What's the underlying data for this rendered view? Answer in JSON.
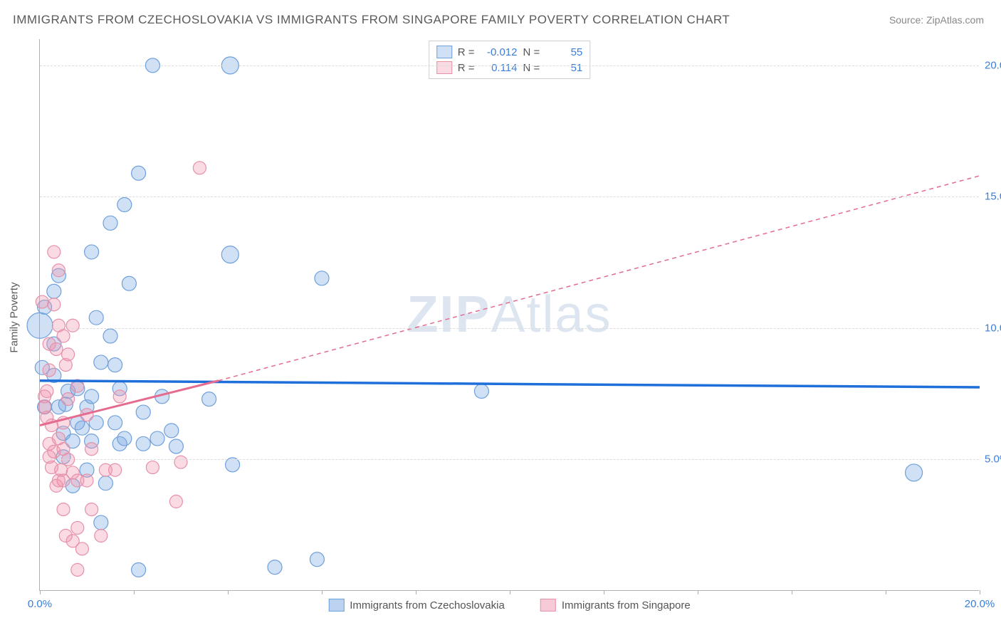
{
  "title": "IMMIGRANTS FROM CZECHOSLOVAKIA VS IMMIGRANTS FROM SINGAPORE FAMILY POVERTY CORRELATION CHART",
  "source": "Source: ZipAtlas.com",
  "watermark_strong": "ZIP",
  "watermark_light": "Atlas",
  "yaxis_title": "Family Poverty",
  "chart": {
    "type": "scatter",
    "xlim": [
      0,
      20
    ],
    "ylim": [
      0,
      21
    ],
    "x_ticks": [
      0,
      2,
      4,
      6,
      8,
      10,
      12,
      14,
      16,
      18,
      20
    ],
    "x_tick_labels": {
      "0": "0.0%",
      "20": "20.0%"
    },
    "y_gridlines": [
      5,
      10,
      15,
      20
    ],
    "y_tick_labels": {
      "5": "5.0%",
      "10": "10.0%",
      "15": "15.0%",
      "20": "20.0%"
    },
    "grid_color": "#dcdcdc",
    "axis_color": "#b0b0b0",
    "label_color": "#3b7dd8",
    "label_fontsize": 15,
    "series": [
      {
        "name": "Immigrants from Czechoslovakia",
        "key": "czech",
        "fill": "rgba(120,165,225,0.35)",
        "stroke": "#6fa0db",
        "trend_color": "#1e6fd9",
        "trend_width": 3.5,
        "trend_dash": "none",
        "trend_from": [
          0,
          8.0
        ],
        "trend_to": [
          20,
          7.75
        ],
        "trend_extrapolate_dash": "none",
        "r_value": "-0.012",
        "n_value": "55",
        "marker_radius": 10,
        "points": [
          [
            0.0,
            10.1,
            18
          ],
          [
            0.05,
            8.5,
            10
          ],
          [
            0.1,
            7.0,
            10
          ],
          [
            0.1,
            10.8,
            10
          ],
          [
            0.3,
            8.2,
            10
          ],
          [
            0.3,
            9.4,
            10
          ],
          [
            0.3,
            11.4,
            10
          ],
          [
            0.4,
            12.0,
            10
          ],
          [
            0.4,
            7.0,
            10
          ],
          [
            0.5,
            5.1,
            10
          ],
          [
            0.5,
            6.0,
            10
          ],
          [
            0.55,
            7.1,
            10
          ],
          [
            0.6,
            7.6,
            10
          ],
          [
            0.7,
            5.7,
            10
          ],
          [
            0.7,
            4.0,
            10
          ],
          [
            0.8,
            7.7,
            10
          ],
          [
            0.8,
            6.4,
            10
          ],
          [
            0.9,
            6.2,
            10
          ],
          [
            1.0,
            4.6,
            10
          ],
          [
            1.0,
            7.0,
            10
          ],
          [
            1.1,
            5.7,
            10
          ],
          [
            1.1,
            7.4,
            10
          ],
          [
            1.1,
            12.9,
            10
          ],
          [
            1.2,
            6.4,
            10
          ],
          [
            1.2,
            10.4,
            10
          ],
          [
            1.3,
            2.6,
            10
          ],
          [
            1.3,
            8.7,
            10
          ],
          [
            1.4,
            4.1,
            10
          ],
          [
            1.5,
            14.0,
            10
          ],
          [
            1.5,
            9.7,
            10
          ],
          [
            1.6,
            6.4,
            10
          ],
          [
            1.6,
            8.6,
            10
          ],
          [
            1.7,
            5.6,
            10
          ],
          [
            1.7,
            7.7,
            10
          ],
          [
            1.8,
            5.8,
            10
          ],
          [
            1.8,
            14.7,
            10
          ],
          [
            1.9,
            11.7,
            10
          ],
          [
            2.1,
            15.9,
            10
          ],
          [
            2.1,
            0.8,
            10
          ],
          [
            2.2,
            5.6,
            10
          ],
          [
            2.2,
            6.8,
            10
          ],
          [
            2.4,
            20.0,
            10
          ],
          [
            2.5,
            5.8,
            10
          ],
          [
            2.6,
            7.4,
            10
          ],
          [
            2.8,
            6.1,
            10
          ],
          [
            2.9,
            5.5,
            10
          ],
          [
            3.6,
            7.3,
            10
          ],
          [
            4.05,
            12.8,
            12
          ],
          [
            4.05,
            20.0,
            12
          ],
          [
            4.1,
            4.8,
            10
          ],
          [
            5.0,
            0.9,
            10
          ],
          [
            5.9,
            1.2,
            10
          ],
          [
            6.0,
            11.9,
            10
          ],
          [
            9.4,
            7.6,
            10
          ],
          [
            18.6,
            4.5,
            12
          ]
        ]
      },
      {
        "name": "Immigrants from Singapore",
        "key": "singapore",
        "fill": "rgba(240,150,175,0.35)",
        "stroke": "#e690a9",
        "trend_color": "#e56b8f",
        "trend_width": 3,
        "trend_dash": "none",
        "trend_from": [
          0,
          6.3
        ],
        "trend_to": [
          3.8,
          8.0
        ],
        "trend_extrapolate_to": [
          20,
          15.8
        ],
        "trend_extrapolate_dash": "6,5",
        "r_value": "0.114",
        "n_value": "51",
        "marker_radius": 9,
        "points": [
          [
            0.05,
            11.0,
            9
          ],
          [
            0.1,
            7.0,
            9
          ],
          [
            0.1,
            7.4,
            9
          ],
          [
            0.15,
            6.6,
            9
          ],
          [
            0.15,
            7.6,
            9
          ],
          [
            0.2,
            5.1,
            9
          ],
          [
            0.2,
            5.6,
            9
          ],
          [
            0.2,
            8.4,
            9
          ],
          [
            0.2,
            9.4,
            9
          ],
          [
            0.25,
            4.7,
            9
          ],
          [
            0.25,
            6.3,
            9
          ],
          [
            0.3,
            5.3,
            9
          ],
          [
            0.3,
            10.9,
            9
          ],
          [
            0.3,
            12.9,
            9
          ],
          [
            0.35,
            4.0,
            9
          ],
          [
            0.35,
            9.2,
            9
          ],
          [
            0.4,
            4.2,
            9
          ],
          [
            0.4,
            5.8,
            9
          ],
          [
            0.4,
            10.1,
            9
          ],
          [
            0.4,
            12.2,
            9
          ],
          [
            0.45,
            4.6,
            9
          ],
          [
            0.5,
            3.1,
            9
          ],
          [
            0.5,
            4.2,
            9
          ],
          [
            0.5,
            5.4,
            9
          ],
          [
            0.5,
            6.4,
            9
          ],
          [
            0.5,
            9.7,
            9
          ],
          [
            0.55,
            2.1,
            9
          ],
          [
            0.55,
            8.6,
            9
          ],
          [
            0.6,
            5.0,
            9
          ],
          [
            0.6,
            7.3,
            9
          ],
          [
            0.6,
            9.0,
            9
          ],
          [
            0.7,
            1.9,
            9
          ],
          [
            0.7,
            4.5,
            9
          ],
          [
            0.7,
            10.1,
            9
          ],
          [
            0.8,
            0.8,
            9
          ],
          [
            0.8,
            2.4,
            9
          ],
          [
            0.8,
            4.2,
            9
          ],
          [
            0.8,
            7.8,
            9
          ],
          [
            0.9,
            1.6,
            9
          ],
          [
            1.0,
            4.2,
            9
          ],
          [
            1.0,
            6.7,
            9
          ],
          [
            1.1,
            3.1,
            9
          ],
          [
            1.1,
            5.4,
            9
          ],
          [
            1.3,
            2.1,
            9
          ],
          [
            1.4,
            4.6,
            9
          ],
          [
            1.6,
            4.6,
            9
          ],
          [
            1.7,
            7.4,
            9
          ],
          [
            2.4,
            4.7,
            9
          ],
          [
            2.9,
            3.4,
            9
          ],
          [
            3.0,
            4.9,
            9
          ],
          [
            3.4,
            16.1,
            9
          ]
        ]
      }
    ]
  },
  "legend_top": {
    "r_label": "R =",
    "n_label": "N ="
  },
  "legend_bottom": {
    "items": [
      {
        "label": "Immigrants from Czechoslovakia",
        "fill": "rgba(120,165,225,0.5)",
        "stroke": "#6fa0db"
      },
      {
        "label": "Immigrants from Singapore",
        "fill": "rgba(240,150,175,0.5)",
        "stroke": "#e690a9"
      }
    ]
  }
}
